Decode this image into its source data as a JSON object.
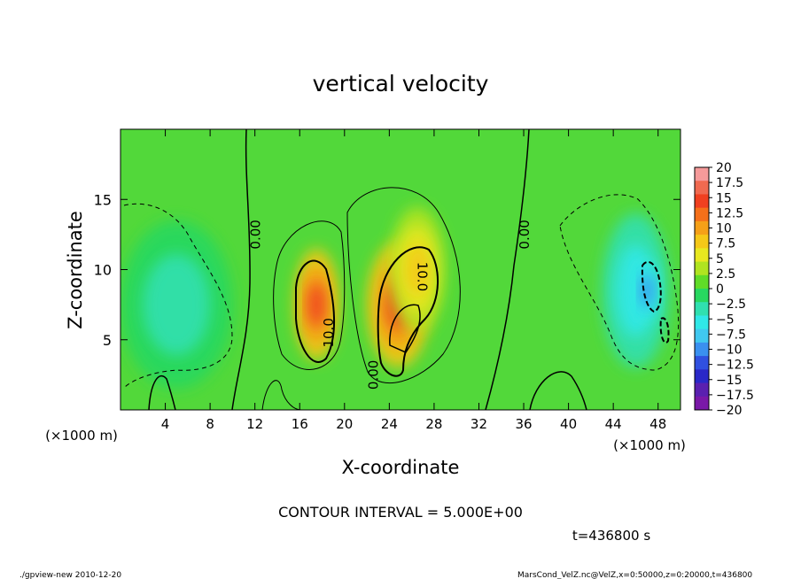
{
  "chart_data": {
    "type": "heatmap",
    "title": "vertical velocity",
    "xlabel": "X-coordinate",
    "ylabel": "Z-coordinate",
    "x_unit": "(×1000 m)",
    "y_unit": "(×1000 m)",
    "xlim": [
      0,
      50
    ],
    "ylim": [
      0,
      20
    ],
    "x_ticks": [
      4,
      8,
      12,
      16,
      20,
      24,
      28,
      32,
      36,
      40,
      44,
      48
    ],
    "y_ticks": [
      5,
      10,
      15
    ],
    "colorbar_levels": [
      "20",
      "17.5",
      "15",
      "12.5",
      "10",
      "7.5",
      "5",
      "2.5",
      "0",
      "-2.5",
      "-5",
      "-7.5",
      "-10",
      "-12.5",
      "-15",
      "-17.5",
      "-20"
    ],
    "colorbar_colors": [
      "#f59a9a",
      "#f06a50",
      "#f04020",
      "#f5701a",
      "#f5a018",
      "#f5c818",
      "#e8e820",
      "#b0e420",
      "#60dc28",
      "#28d860",
      "#30e0b0",
      "#30e8e8",
      "#40c8f0",
      "#3a90f0",
      "#3050e0",
      "#2a28c8",
      "#5a20b0",
      "#7a18a8"
    ],
    "contour_labels": [
      {
        "text": "0.00",
        "x": 12.0,
        "y": 12.5,
        "rotate": -90
      },
      {
        "text": "10.0",
        "x": 18.5,
        "y": 5.5,
        "rotate": -90
      },
      {
        "text": "0.00",
        "x": 22.5,
        "y": 2.5,
        "rotate": -90
      },
      {
        "text": "10.0",
        "x": 27.0,
        "y": 9.5,
        "rotate": 90
      },
      {
        "text": "0.00",
        "x": 36.0,
        "y": 12.5,
        "rotate": -90
      }
    ],
    "features": [
      {
        "x": 17.5,
        "y": 7.5,
        "rx": 2.0,
        "ry": 4.0,
        "value": 14
      },
      {
        "x": 24.8,
        "y": 7.5,
        "rx": 2.8,
        "ry": 4.5,
        "value": 14
      },
      {
        "x": 26.5,
        "y": 10.0,
        "rx": 2.5,
        "ry": 4.5,
        "value": 7
      },
      {
        "x": 5.0,
        "y": 7.5,
        "rx": 5.0,
        "ry": 6.0,
        "value": -5
      },
      {
        "x": 46.0,
        "y": 8.5,
        "rx": 3.0,
        "ry": 5.5,
        "value": -7
      },
      {
        "x": 47.0,
        "y": 8.5,
        "rx": 1.0,
        "ry": 2.0,
        "value": -12
      }
    ],
    "annotation": "CONTOUR INTERVAL = 5.000E+00",
    "time_label": "t=436800 s"
  },
  "footer": {
    "left": "./gpview-new   2010-12-20",
    "right": "MarsCond_VelZ.nc@VelZ,x=0:50000,z=0:20000,t=436800"
  }
}
